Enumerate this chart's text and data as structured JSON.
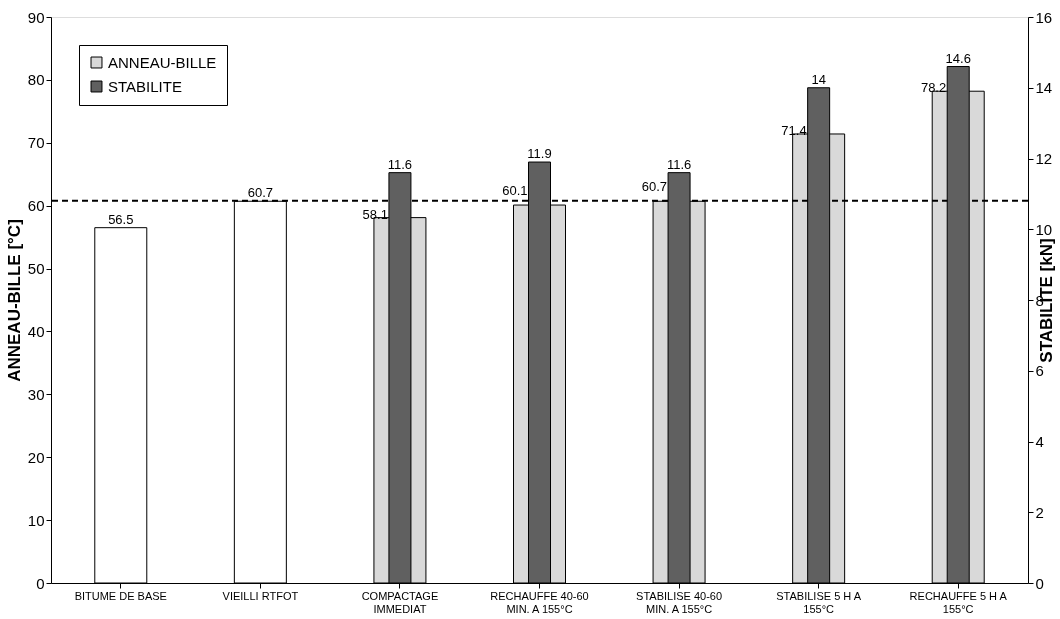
{
  "chart_data": {
    "type": "bar",
    "categories": [
      "BITUME DE BASE",
      "VIEILLI RTFOT",
      "COMPACTAGE\nIMMEDIAT",
      "RECHAUFFE 40-60\nMIN. A 155°C",
      "STABILISE  40-60\nMIN. A 155°C",
      "STABILISE 5 H A\n155°C",
      "RECHAUFFE 5 H A\n155°C"
    ],
    "ylabel": "ANNEAU-BILLE  [°C]",
    "y2label": "STABILITE  [kN]",
    "series": [
      {
        "name": "ANNEAU-BILLE",
        "color": "#d9d9d9",
        "colors": [
          "#ffffff",
          "#ffffff",
          "#d9d9d9",
          "#d9d9d9",
          "#d9d9d9",
          "#d9d9d9",
          "#d9d9d9"
        ],
        "values": [
          56.5,
          60.7,
          58.1,
          60.1,
          60.7,
          71.4,
          78.2
        ]
      },
      {
        "name": "STABILITE",
        "color": "#606060",
        "axis": "y2",
        "values": [
          null,
          null,
          11.6,
          11.9,
          11.6,
          14,
          14.6
        ]
      }
    ],
    "ylim": [
      0,
      90
    ],
    "yticks": [
      0,
      10,
      20,
      30,
      40,
      50,
      60,
      70,
      80,
      90
    ],
    "y2lim": [
      0,
      16
    ],
    "y2ticks": [
      0,
      2,
      4,
      6,
      8,
      10,
      12,
      14,
      16
    ],
    "ref_lines": [
      {
        "axis": "y",
        "value": 60.8,
        "color": "#000000",
        "line_style": "dashed"
      }
    ],
    "data_labels": true,
    "legend": "top left",
    "grid": false
  }
}
